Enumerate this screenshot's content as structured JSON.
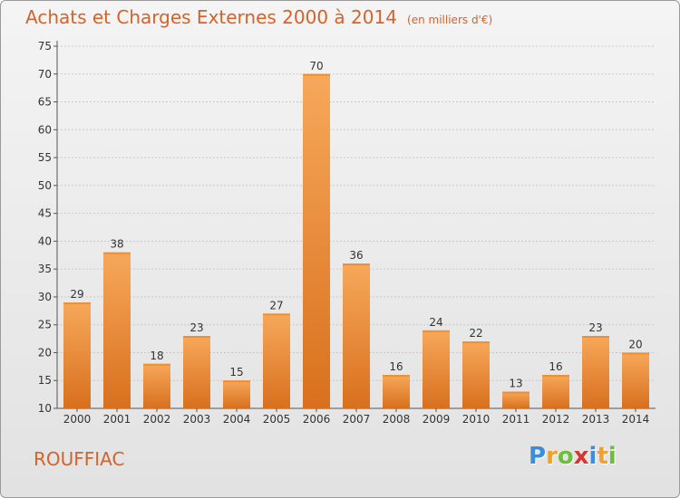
{
  "chart_data": {
    "type": "bar",
    "title": "Achats et Charges Externes 2000 à 2014",
    "subtitle": "(en milliers d'€)",
    "categories": [
      "2000",
      "2001",
      "2002",
      "2003",
      "2004",
      "2005",
      "2006",
      "2007",
      "2008",
      "2009",
      "2010",
      "2011",
      "2012",
      "2013",
      "2014"
    ],
    "values": [
      29,
      38,
      18,
      23,
      15,
      27,
      70,
      36,
      16,
      24,
      22,
      13,
      16,
      23,
      20
    ],
    "ylim": [
      10,
      75
    ],
    "yticks": [
      10,
      15,
      20,
      25,
      30,
      35,
      40,
      45,
      50,
      55,
      60,
      65,
      70,
      75
    ],
    "grid": true,
    "bar_color": "#f08a2c"
  },
  "place": "ROUFFIAC",
  "logo": {
    "letters": [
      "P",
      "r",
      "o",
      "x",
      "i",
      "t",
      "i"
    ],
    "colors": [
      "#3a8fd8",
      "#f0a02c",
      "#6cbf3a",
      "#d8372f",
      "#3a8fd8",
      "#f0a02c",
      "#6cbf3a"
    ]
  }
}
